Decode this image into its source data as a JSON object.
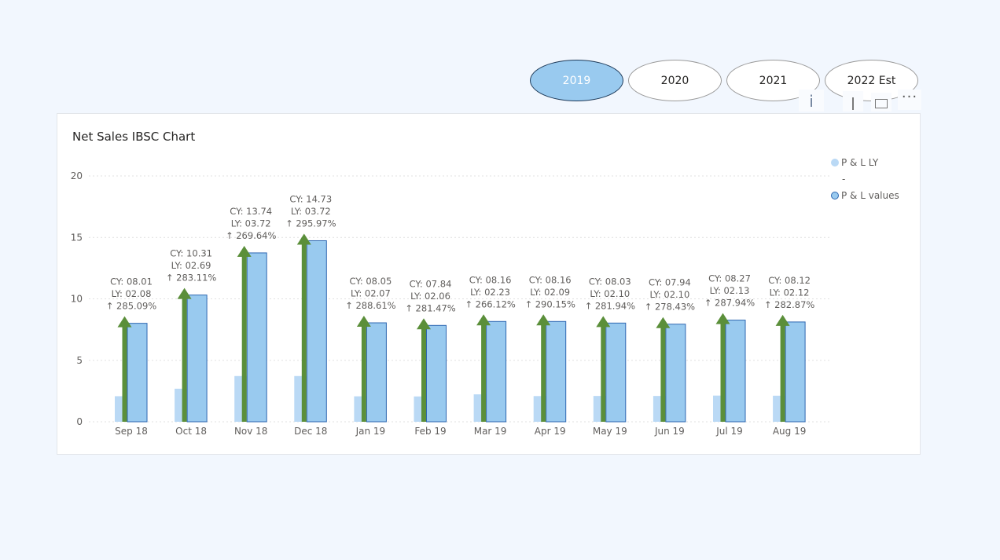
{
  "slicer": {
    "options": [
      {
        "label": "2019",
        "selected": true
      },
      {
        "label": "2020",
        "selected": false
      },
      {
        "label": "2021",
        "selected": false
      },
      {
        "label": "2022 Est",
        "selected": false
      }
    ]
  },
  "toolbar": {
    "info_label": "i",
    "more_label": "···"
  },
  "colors": {
    "ly_bar": "#bad9f5",
    "cy_bar": "#99caef",
    "cy_bar_border": "#2e67b1",
    "arrow": "#5b8f3a",
    "gridline": "#e1e1e1",
    "text": "#605e5c"
  },
  "chart_data": {
    "type": "bar",
    "title": "Net Sales IBSC Chart",
    "categories": [
      "Sep 18",
      "Oct 18",
      "Nov 18",
      "Dec 18",
      "Jan 19",
      "Feb 19",
      "Mar 19",
      "Apr 19",
      "May 19",
      "Jun 19",
      "Jul 19",
      "Aug 19"
    ],
    "series": [
      {
        "name": "P & L LY",
        "values": [
          2.08,
          2.69,
          3.72,
          3.72,
          2.07,
          2.06,
          2.23,
          2.09,
          2.1,
          2.1,
          2.13,
          2.12
        ]
      },
      {
        "name": "P & L values",
        "values": [
          8.01,
          10.31,
          13.74,
          14.73,
          8.05,
          7.84,
          8.16,
          8.16,
          8.03,
          7.94,
          8.27,
          8.12
        ]
      }
    ],
    "data_labels": [
      [
        "CY: 08.01",
        "LY: 02.08",
        "↑ 285.09%"
      ],
      [
        "CY: 10.31",
        "LY: 02.69",
        "↑ 283.11%"
      ],
      [
        "CY: 13.74",
        "LY: 03.72",
        "↑ 269.64%"
      ],
      [
        "CY: 14.73",
        "LY: 03.72",
        "↑ 295.97%"
      ],
      [
        "CY: 08.05",
        "LY: 02.07",
        "↑ 288.61%"
      ],
      [
        "CY: 07.84",
        "LY: 02.06",
        "↑ 281.47%"
      ],
      [
        "CY: 08.16",
        "LY: 02.23",
        "↑ 266.12%"
      ],
      [
        "CY: 08.16",
        "LY: 02.09",
        "↑ 290.15%"
      ],
      [
        "CY: 08.03",
        "LY: 02.10",
        "↑ 281.94%"
      ],
      [
        "CY: 07.94",
        "LY: 02.10",
        "↑ 278.43%"
      ],
      [
        "CY: 08.27",
        "LY: 02.13",
        "↑ 287.94%"
      ],
      [
        "CY: 08.12",
        "LY: 02.12",
        "↑ 282.87%"
      ]
    ],
    "yticks": [
      "0",
      "5",
      "10",
      "15",
      "20"
    ],
    "ylim": [
      0,
      20
    ],
    "legend_separator": "-",
    "legend_position": "right",
    "grid": true
  }
}
